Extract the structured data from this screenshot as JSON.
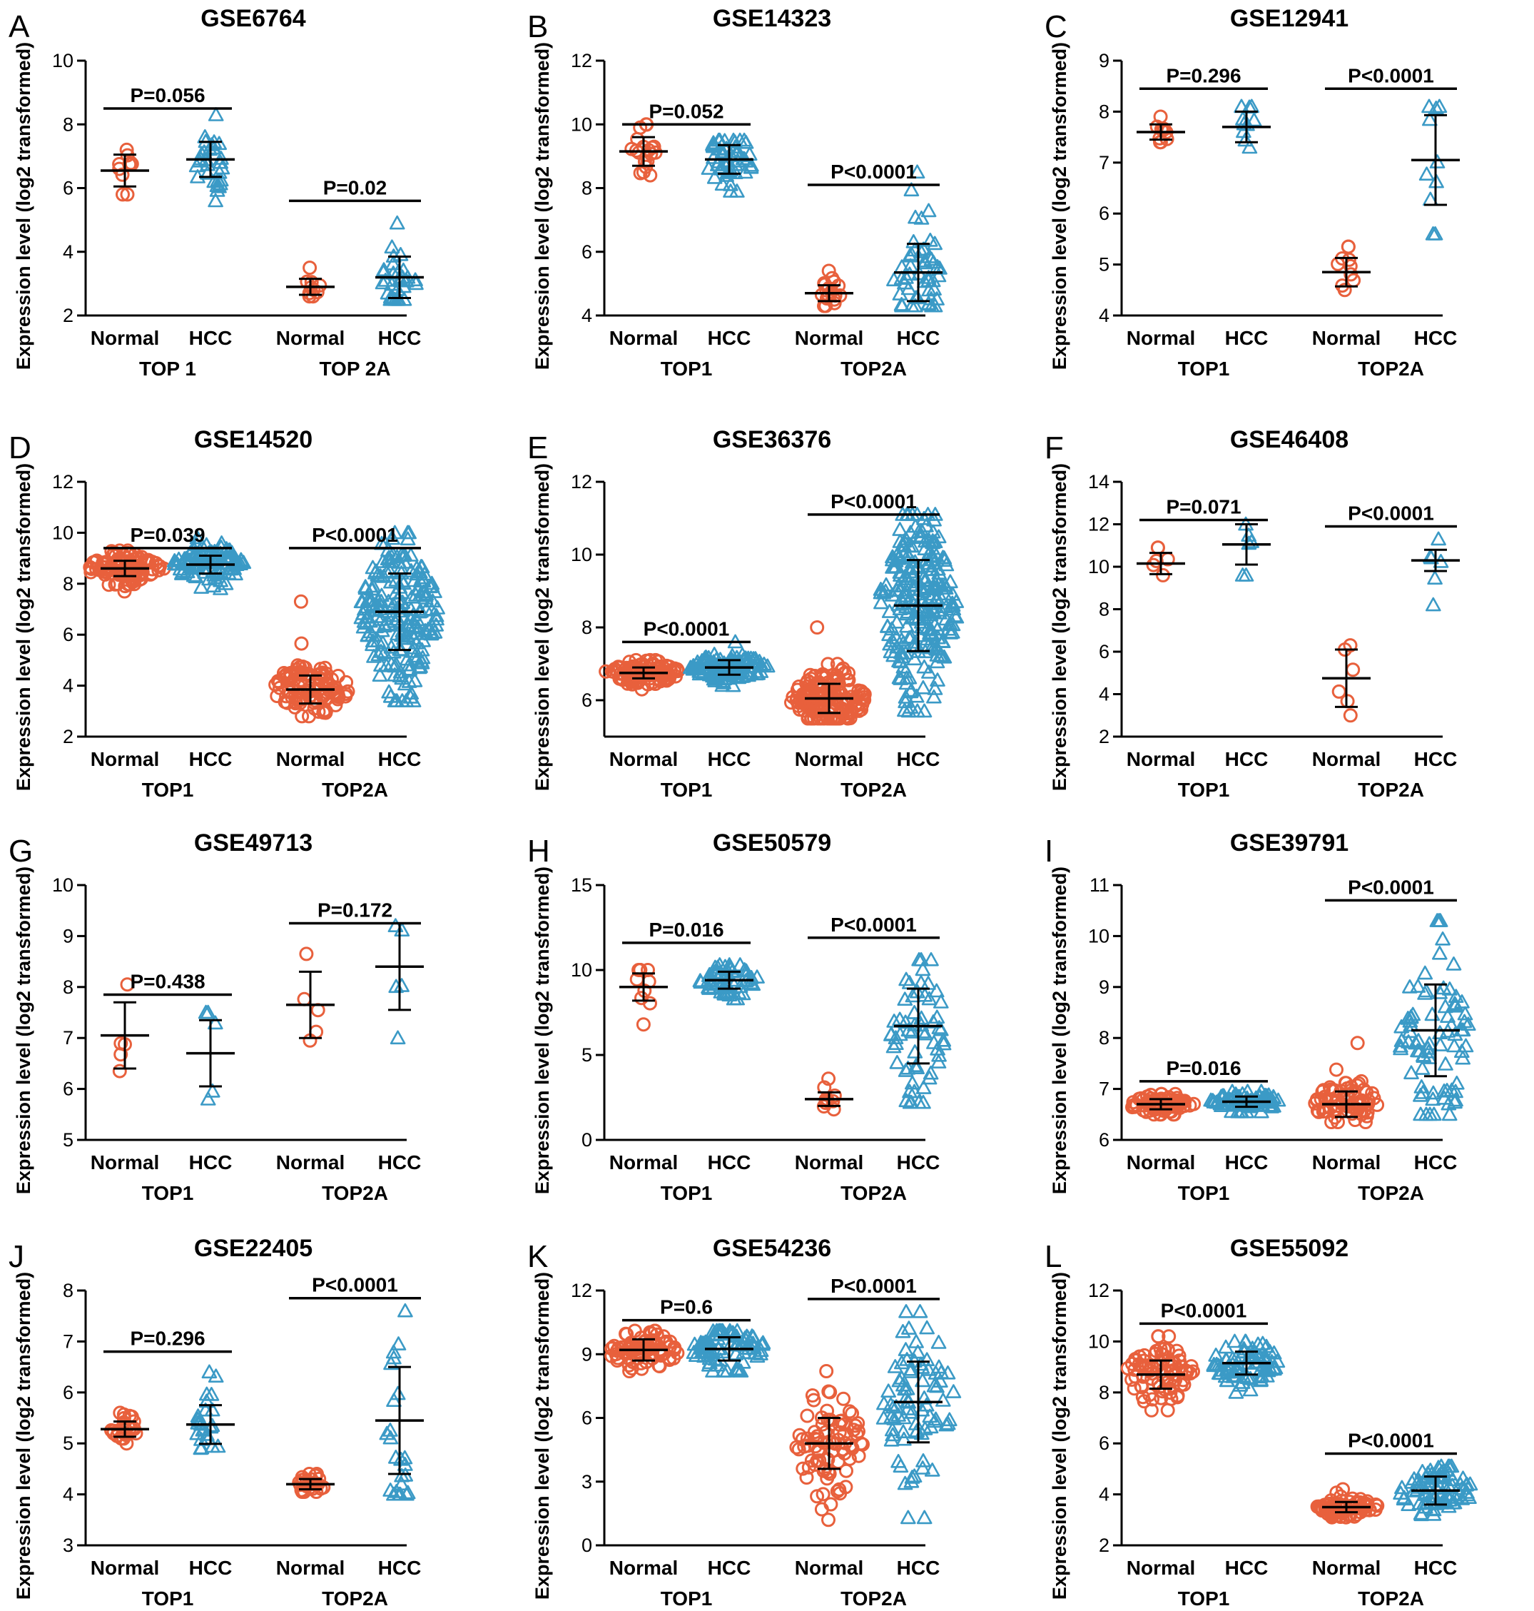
{
  "colors": {
    "normal": "#E8603C",
    "hcc": "#3B9AC6",
    "axis": "#000000"
  },
  "chart_data": [
    {
      "panel": "A",
      "title": "GSE6764",
      "type": "scatter",
      "ylabel": "Expression level (log2 transformed)",
      "ylim": [
        2,
        10
      ],
      "yticks": [
        "2",
        "4",
        "6",
        "8",
        "10"
      ],
      "group_labels": [
        "Normal",
        "HCC",
        "Normal",
        "HCC"
      ],
      "gene_labels": [
        "TOP 1",
        "TOP 2A"
      ],
      "groups": [
        {
          "mean": 6.55,
          "sd": 0.5,
          "n": 10,
          "min": 5.8,
          "max": 7.2
        },
        {
          "mean": 6.9,
          "sd": 0.55,
          "n": 30,
          "min": 5.6,
          "max": 8.3
        },
        {
          "mean": 2.9,
          "sd": 0.25,
          "n": 10,
          "min": 2.6,
          "max": 3.5
        },
        {
          "mean": 3.2,
          "sd": 0.65,
          "n": 30,
          "min": 2.5,
          "max": 4.9
        }
      ],
      "pvalues": [
        {
          "text": "P=0.056",
          "level": 8.5
        },
        {
          "text": "P=0.02",
          "level": 5.6
        }
      ]
    },
    {
      "panel": "B",
      "title": "GSE14323",
      "type": "scatter",
      "ylabel": "Expression level (log2 transformed)",
      "ylim": [
        4,
        12
      ],
      "yticks": [
        "4",
        "6",
        "8",
        "10",
        "12"
      ],
      "group_labels": [
        "Normal",
        "HCC",
        "Normal",
        "HCC"
      ],
      "gene_labels": [
        "TOP1",
        "TOP2A"
      ],
      "groups": [
        {
          "mean": 9.15,
          "sd": 0.45,
          "n": 19,
          "min": 8.4,
          "max": 10.0
        },
        {
          "mean": 8.9,
          "sd": 0.45,
          "n": 50,
          "min": 7.9,
          "max": 9.5
        },
        {
          "mean": 4.7,
          "sd": 0.25,
          "n": 19,
          "min": 4.3,
          "max": 5.4
        },
        {
          "mean": 5.35,
          "sd": 0.9,
          "n": 50,
          "min": 4.3,
          "max": 8.5
        }
      ],
      "pvalues": [
        {
          "text": "P=0.052",
          "level": 10.0
        },
        {
          "text": "P<0.0001",
          "level": 8.1
        }
      ]
    },
    {
      "panel": "C",
      "title": "GSE12941",
      "type": "scatter",
      "ylabel": "Expression level (log2 transformed)",
      "ylim": [
        4,
        9
      ],
      "yticks": [
        "4",
        "5",
        "6",
        "7",
        "8",
        "9"
      ],
      "group_labels": [
        "Normal",
        "HCC",
        "Normal",
        "HCC"
      ],
      "gene_labels": [
        "TOP1",
        "TOP2A"
      ],
      "groups": [
        {
          "mean": 7.6,
          "sd": 0.15,
          "n": 10,
          "min": 7.4,
          "max": 7.9
        },
        {
          "mean": 7.7,
          "sd": 0.3,
          "n": 10,
          "min": 7.3,
          "max": 8.1
        },
        {
          "mean": 4.85,
          "sd": 0.28,
          "n": 10,
          "min": 4.5,
          "max": 5.35
        },
        {
          "mean": 7.05,
          "sd": 0.88,
          "n": 10,
          "min": 5.6,
          "max": 8.1
        }
      ],
      "pvalues": [
        {
          "text": "P=0.296",
          "level": 8.45
        },
        {
          "text": "P<0.0001",
          "level": 8.45
        }
      ]
    },
    {
      "panel": "D",
      "title": "GSE14520",
      "type": "scatter",
      "ylabel": "Expression level (log2 transformed)",
      "ylim": [
        2,
        12
      ],
      "yticks": [
        "2",
        "4",
        "6",
        "8",
        "10",
        "12"
      ],
      "group_labels": [
        "Normal",
        "HCC",
        "Normal",
        "HCC"
      ],
      "gene_labels": [
        "TOP1",
        "TOP2A"
      ],
      "groups": [
        {
          "mean": 8.6,
          "sd": 0.3,
          "n": 100,
          "min": 7.7,
          "max": 9.3
        },
        {
          "mean": 8.75,
          "sd": 0.35,
          "n": 100,
          "min": 7.8,
          "max": 9.8
        },
        {
          "mean": 3.85,
          "sd": 0.55,
          "n": 100,
          "min": 2.8,
          "max": 7.3
        },
        {
          "mean": 6.9,
          "sd": 1.5,
          "n": 200,
          "min": 3.4,
          "max": 10.0
        }
      ],
      "pvalues": [
        {
          "text": "P=0.039",
          "level": 9.4
        },
        {
          "text": "P<0.0001",
          "level": 9.4
        }
      ]
    },
    {
      "panel": "E",
      "title": "GSE36376",
      "type": "scatter",
      "ylabel": "Expression level (log2 transformed)",
      "ylim": [
        5,
        12
      ],
      "yticks": [
        "6",
        "8",
        "10",
        "12"
      ],
      "group_labels": [
        "Normal",
        "HCC",
        "Normal",
        "HCC"
      ],
      "gene_labels": [
        "TOP1",
        "TOP2A"
      ],
      "groups": [
        {
          "mean": 6.75,
          "sd": 0.15,
          "n": 100,
          "min": 6.3,
          "max": 7.1
        },
        {
          "mean": 6.9,
          "sd": 0.2,
          "n": 120,
          "min": 6.4,
          "max": 7.6
        },
        {
          "mean": 6.05,
          "sd": 0.4,
          "n": 150,
          "min": 5.5,
          "max": 8.0
        },
        {
          "mean": 8.6,
          "sd": 1.25,
          "n": 240,
          "min": 5.7,
          "max": 11.1
        }
      ],
      "pvalues": [
        {
          "text": "P<0.0001",
          "level": 7.6
        },
        {
          "text": "P<0.0001",
          "level": 11.1
        }
      ]
    },
    {
      "panel": "F",
      "title": "GSE46408",
      "type": "scatter",
      "ylabel": "Expression level (log2 transformed)",
      "ylim": [
        2,
        14
      ],
      "yticks": [
        "2",
        "4",
        "6",
        "8",
        "10",
        "12",
        "14"
      ],
      "group_labels": [
        "Normal",
        "HCC",
        "Normal",
        "HCC"
      ],
      "gene_labels": [
        "TOP1",
        "TOP2A"
      ],
      "groups": [
        {
          "mean": 10.15,
          "sd": 0.5,
          "n": 6,
          "min": 9.6,
          "max": 10.9
        },
        {
          "mean": 11.05,
          "sd": 0.95,
          "n": 6,
          "min": 9.6,
          "max": 12.0
        },
        {
          "mean": 4.75,
          "sd": 1.35,
          "n": 6,
          "min": 3.0,
          "max": 6.3
        },
        {
          "mean": 10.3,
          "sd": 0.5,
          "n": 6,
          "min": 8.2,
          "max": 11.3
        }
      ],
      "pvalues": [
        {
          "text": "P=0.071",
          "level": 12.2
        },
        {
          "text": "P<0.0001",
          "level": 11.9
        }
      ]
    },
    {
      "panel": "G",
      "title": "GSE49713",
      "type": "scatter",
      "ylabel": "Expression level (log2 transformed)",
      "ylim": [
        5,
        10
      ],
      "yticks": [
        "5",
        "6",
        "7",
        "8",
        "9",
        "10"
      ],
      "group_labels": [
        "Normal",
        "HCC",
        "Normal",
        "HCC"
      ],
      "gene_labels": [
        "TOP1",
        "TOP2A"
      ],
      "groups": [
        {
          "mean": 7.05,
          "sd": 0.65,
          "n": 5,
          "min": 6.35,
          "max": 8.05
        },
        {
          "mean": 6.7,
          "sd": 0.65,
          "n": 5,
          "min": 5.8,
          "max": 7.5
        },
        {
          "mean": 7.65,
          "sd": 0.65,
          "n": 5,
          "min": 6.95,
          "max": 8.65
        },
        {
          "mean": 8.4,
          "sd": 0.85,
          "n": 5,
          "min": 7.0,
          "max": 9.2
        }
      ],
      "pvalues": [
        {
          "text": "P=0.438",
          "level": 7.85
        },
        {
          "text": "P=0.172",
          "level": 9.25
        }
      ]
    },
    {
      "panel": "H",
      "title": "GSE50579",
      "type": "scatter",
      "ylabel": "Expression level (log2 transformed)",
      "ylim": [
        0,
        15
      ],
      "yticks": [
        "0",
        "5",
        "10",
        "15"
      ],
      "group_labels": [
        "Normal",
        "HCC",
        "Normal",
        "HCC"
      ],
      "gene_labels": [
        "TOP1",
        "TOP2A"
      ],
      "groups": [
        {
          "mean": 9.0,
          "sd": 0.8,
          "n": 10,
          "min": 6.8,
          "max": 10.0
        },
        {
          "mean": 9.4,
          "sd": 0.5,
          "n": 60,
          "min": 8.3,
          "max": 10.3
        },
        {
          "mean": 2.4,
          "sd": 0.4,
          "n": 10,
          "min": 1.8,
          "max": 3.6
        },
        {
          "mean": 6.7,
          "sd": 2.2,
          "n": 60,
          "min": 2.2,
          "max": 10.6
        }
      ],
      "pvalues": [
        {
          "text": "P=0.016",
          "level": 11.6
        },
        {
          "text": "P<0.0001",
          "level": 11.9
        }
      ]
    },
    {
      "panel": "I",
      "title": "GSE39791",
      "type": "scatter",
      "ylabel": "Expression level (log2 transformed)",
      "ylim": [
        6,
        11
      ],
      "yticks": [
        "6",
        "7",
        "8",
        "9",
        "10",
        "11"
      ],
      "group_labels": [
        "Normal",
        "HCC",
        "Normal",
        "HCC"
      ],
      "gene_labels": [
        "TOP1",
        "TOP2A"
      ],
      "groups": [
        {
          "mean": 6.7,
          "sd": 0.1,
          "n": 70,
          "min": 6.5,
          "max": 6.9
        },
        {
          "mean": 6.75,
          "sd": 0.1,
          "n": 80,
          "min": 6.55,
          "max": 6.95
        },
        {
          "mean": 6.7,
          "sd": 0.25,
          "n": 70,
          "min": 6.35,
          "max": 7.9
        },
        {
          "mean": 8.15,
          "sd": 0.9,
          "n": 80,
          "min": 6.5,
          "max": 10.3
        }
      ],
      "pvalues": [
        {
          "text": "P=0.016",
          "level": 7.15
        },
        {
          "text": "P<0.0001",
          "level": 10.7
        }
      ]
    },
    {
      "panel": "J",
      "title": "GSE22405",
      "type": "scatter",
      "ylabel": "Expression level (log2 transformed)",
      "ylim": [
        3,
        8
      ],
      "yticks": [
        "3",
        "4",
        "5",
        "6",
        "7",
        "8"
      ],
      "group_labels": [
        "Normal",
        "HCC",
        "Normal",
        "HCC"
      ],
      "gene_labels": [
        "TOP1",
        "TOP2A"
      ],
      "groups": [
        {
          "mean": 5.28,
          "sd": 0.15,
          "n": 24,
          "min": 5.0,
          "max": 5.6
        },
        {
          "mean": 5.37,
          "sd": 0.38,
          "n": 24,
          "min": 4.9,
          "max": 6.4
        },
        {
          "mean": 4.2,
          "sd": 0.1,
          "n": 24,
          "min": 4.05,
          "max": 4.4
        },
        {
          "mean": 5.45,
          "sd": 1.05,
          "n": 24,
          "min": 4.0,
          "max": 7.6
        }
      ],
      "pvalues": [
        {
          "text": "P=0.296",
          "level": 6.8
        },
        {
          "text": "P<0.0001",
          "level": 7.85
        }
      ]
    },
    {
      "panel": "K",
      "title": "GSE54236",
      "type": "scatter",
      "ylabel": "Expression level (log2 transformed)",
      "ylim": [
        0,
        12
      ],
      "yticks": [
        "0",
        "3",
        "6",
        "9",
        "12"
      ],
      "group_labels": [
        "Normal",
        "HCC",
        "Normal",
        "HCC"
      ],
      "gene_labels": [
        "TOP1",
        "TOP2A"
      ],
      "groups": [
        {
          "mean": 9.2,
          "sd": 0.5,
          "n": 80,
          "min": 8.2,
          "max": 10.1
        },
        {
          "mean": 9.25,
          "sd": 0.55,
          "n": 80,
          "min": 8.2,
          "max": 10.1
        },
        {
          "mean": 4.8,
          "sd": 1.2,
          "n": 80,
          "min": 1.2,
          "max": 8.2
        },
        {
          "mean": 6.75,
          "sd": 1.9,
          "n": 80,
          "min": 1.3,
          "max": 11.0
        }
      ],
      "pvalues": [
        {
          "text": "P=0.6",
          "level": 10.6
        },
        {
          "text": "P<0.0001",
          "level": 11.6
        }
      ]
    },
    {
      "panel": "L",
      "title": "GSE55092",
      "type": "scatter",
      "ylabel": "Expression level (log2 transformed)",
      "ylim": [
        2,
        12
      ],
      "yticks": [
        "2",
        "4",
        "6",
        "8",
        "10",
        "12"
      ],
      "group_labels": [
        "Normal",
        "HCC",
        "Normal",
        "HCC"
      ],
      "gene_labels": [
        "TOP1",
        "TOP2A"
      ],
      "groups": [
        {
          "mean": 8.7,
          "sd": 0.55,
          "n": 80,
          "min": 7.3,
          "max": 10.2
        },
        {
          "mean": 9.15,
          "sd": 0.45,
          "n": 80,
          "min": 8.0,
          "max": 10.0
        },
        {
          "mean": 3.5,
          "sd": 0.2,
          "n": 70,
          "min": 3.1,
          "max": 4.2
        },
        {
          "mean": 4.15,
          "sd": 0.55,
          "n": 80,
          "min": 3.2,
          "max": 5.1
        }
      ],
      "pvalues": [
        {
          "text": "P<0.0001",
          "level": 10.7
        },
        {
          "text": "P<0.0001",
          "level": 5.6
        }
      ]
    }
  ]
}
